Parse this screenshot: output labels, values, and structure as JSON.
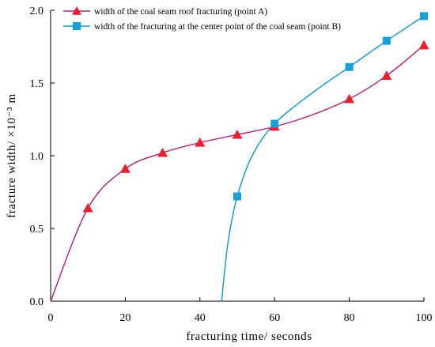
{
  "chart_data": {
    "type": "line",
    "xlabel": "fracturing time/ seconds",
    "ylabel": "fracture width/ ×10⁻³ m",
    "xlim": [
      0,
      100
    ],
    "ylim": [
      0,
      2.0
    ],
    "x_ticks": [
      0,
      20,
      40,
      60,
      80,
      100
    ],
    "y_ticks": [
      0.0,
      0.5,
      1.0,
      1.5,
      2.0
    ],
    "x_tick_labels": [
      "0",
      "20",
      "40",
      "60",
      "80",
      "100"
    ],
    "y_tick_labels": [
      "0.0",
      "0.5",
      "1.0",
      "1.5",
      "2.0"
    ],
    "grid": false,
    "legend_position": "top-left",
    "series": [
      {
        "name": "width of the coal seam roof fracturing (point A)",
        "line_color": "#b0287a",
        "marker_color": "#e8202f",
        "marker": "triangle",
        "curve_x": [
          0,
          10,
          20,
          30,
          40,
          50,
          60,
          70,
          80,
          90,
          100
        ],
        "curve_y": [
          0.0,
          0.64,
          0.91,
          1.02,
          1.09,
          1.145,
          1.2,
          1.28,
          1.39,
          1.55,
          1.76
        ],
        "x": [
          10,
          20,
          30,
          40,
          50,
          60,
          80,
          90,
          100
        ],
        "y": [
          0.64,
          0.91,
          1.02,
          1.09,
          1.145,
          1.2,
          1.39,
          1.55,
          1.76
        ]
      },
      {
        "name": "width of the fracturing at the center point of the coal seam (point B)",
        "line_color": "#1a9bd0",
        "marker_color": "#18a0d8",
        "marker": "square",
        "curve_x": [
          45.8,
          47.5,
          50,
          54,
          60,
          70,
          80,
          90,
          100
        ],
        "curve_y": [
          0.0,
          0.4,
          0.72,
          1.0,
          1.22,
          1.43,
          1.61,
          1.79,
          1.96
        ],
        "x": [
          50,
          60,
          80,
          90,
          100
        ],
        "y": [
          0.72,
          1.22,
          1.61,
          1.79,
          1.96
        ]
      }
    ]
  }
}
